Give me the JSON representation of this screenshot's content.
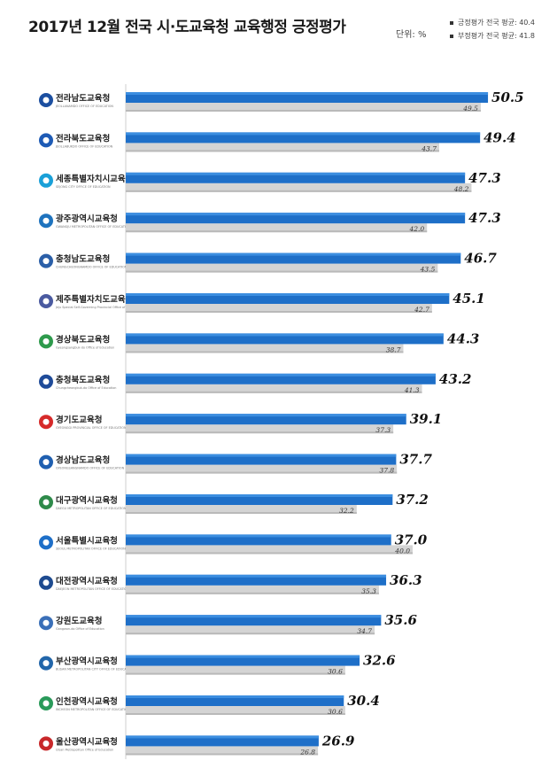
{
  "header": {
    "title": "2017년 12월 전국 시·도교육청 교육행정 긍정평가",
    "unit": "단위: %",
    "legend": [
      "긍정평가 전국 평균: 40.4",
      "부정평가 전국 평균: 41.8"
    ]
  },
  "colors": {
    "positive_bar": "#1e6fc8",
    "positive_bar_top": "#3c8ee0",
    "negative_bar": "#d4d4d4",
    "negative_bar_shadow": "#b9b9b9"
  },
  "chart_data": {
    "type": "bar",
    "orientation": "horizontal",
    "title": "2017년 12월 전국 시·도교육청 교육행정 긍정평가",
    "unit": "%",
    "categories": [
      "전라남도교육청",
      "전라북도교육청",
      "세종특별자치시교육청",
      "광주광역시교육청",
      "충청남도교육청",
      "제주특별자치도교육청",
      "경상북도교육청",
      "충청북도교육청",
      "경기도교육청",
      "경상남도교육청",
      "대구광역시교육청",
      "서울특별시교육청",
      "대전광역시교육청",
      "강원도교육청",
      "부산광역시교육청",
      "인천광역시교육청",
      "울산광역시교육청"
    ],
    "category_subtitles": [
      "JEOLLANAMDO OFFICE OF EDUCATION",
      "JEOLLABUKDO OFFICE OF EDUCATION",
      "SEJONG CITY OFFICE OF EDUCATION",
      "GWANGJU METROPOLITAN OFFICE OF EDUCATION",
      "CHUNGCHEONGNAMDO OFFICE OF EDUCATION",
      "Jeju Special Self-Governing Provincial Office of Education",
      "Gyeongsangbuk-do Office of Education",
      "Chungcheongbuk-do Office of Education",
      "GYEONGGI PROVINCIAL OFFICE OF EDUCATION",
      "GYEONGSANGNAMDO OFFICE OF EDUCATION",
      "DAEGU METROPOLITAN OFFICE OF EDUCATION",
      "SEOUL METROPOLITAN OFFICE OF EDUCATION",
      "DAEJEON METROPOLITAN OFFICE OF EDUCATION",
      "Gangwon-do Office of Education",
      "BUSAN METROPOLITAN CITY OFFICE OF EDUCATION",
      "INCHEON METROPOLITAN OFFICE OF EDUCATION",
      "Ulsan Metropolitan Office of Education"
    ],
    "series": [
      {
        "name": "긍정평가",
        "values": [
          50.5,
          49.4,
          47.3,
          47.3,
          46.7,
          45.1,
          44.3,
          43.2,
          39.1,
          37.7,
          37.2,
          37.0,
          36.3,
          35.6,
          32.6,
          30.4,
          26.9
        ],
        "labels": [
          "50.5",
          "49.4",
          "47.3",
          "47.3",
          "46.7",
          "45.1",
          "44.3",
          "43.2",
          "39.1",
          "37.7",
          "37.2",
          "37.0",
          "36.3",
          "35.6",
          "32.6",
          "30.4",
          "26.9"
        ]
      },
      {
        "name": "부정평가",
        "values": [
          49.5,
          43.7,
          48.2,
          42.0,
          43.5,
          42.7,
          38.7,
          41.3,
          37.3,
          37.8,
          32.2,
          40.0,
          35.3,
          34.7,
          30.6,
          30.6,
          26.8
        ],
        "labels": [
          "49.5",
          "43.7",
          "48.2",
          "42.0",
          "43.5",
          "42.7",
          "38.7",
          "41.3",
          "37.3",
          "37.8",
          "32.2",
          "40.0",
          "35.3",
          "34.7",
          "30.6",
          "30.6",
          "26.8"
        ]
      }
    ],
    "national_average": {
      "positive": 40.4,
      "negative": 41.8
    },
    "legend_position": "top-right",
    "grid": false
  }
}
